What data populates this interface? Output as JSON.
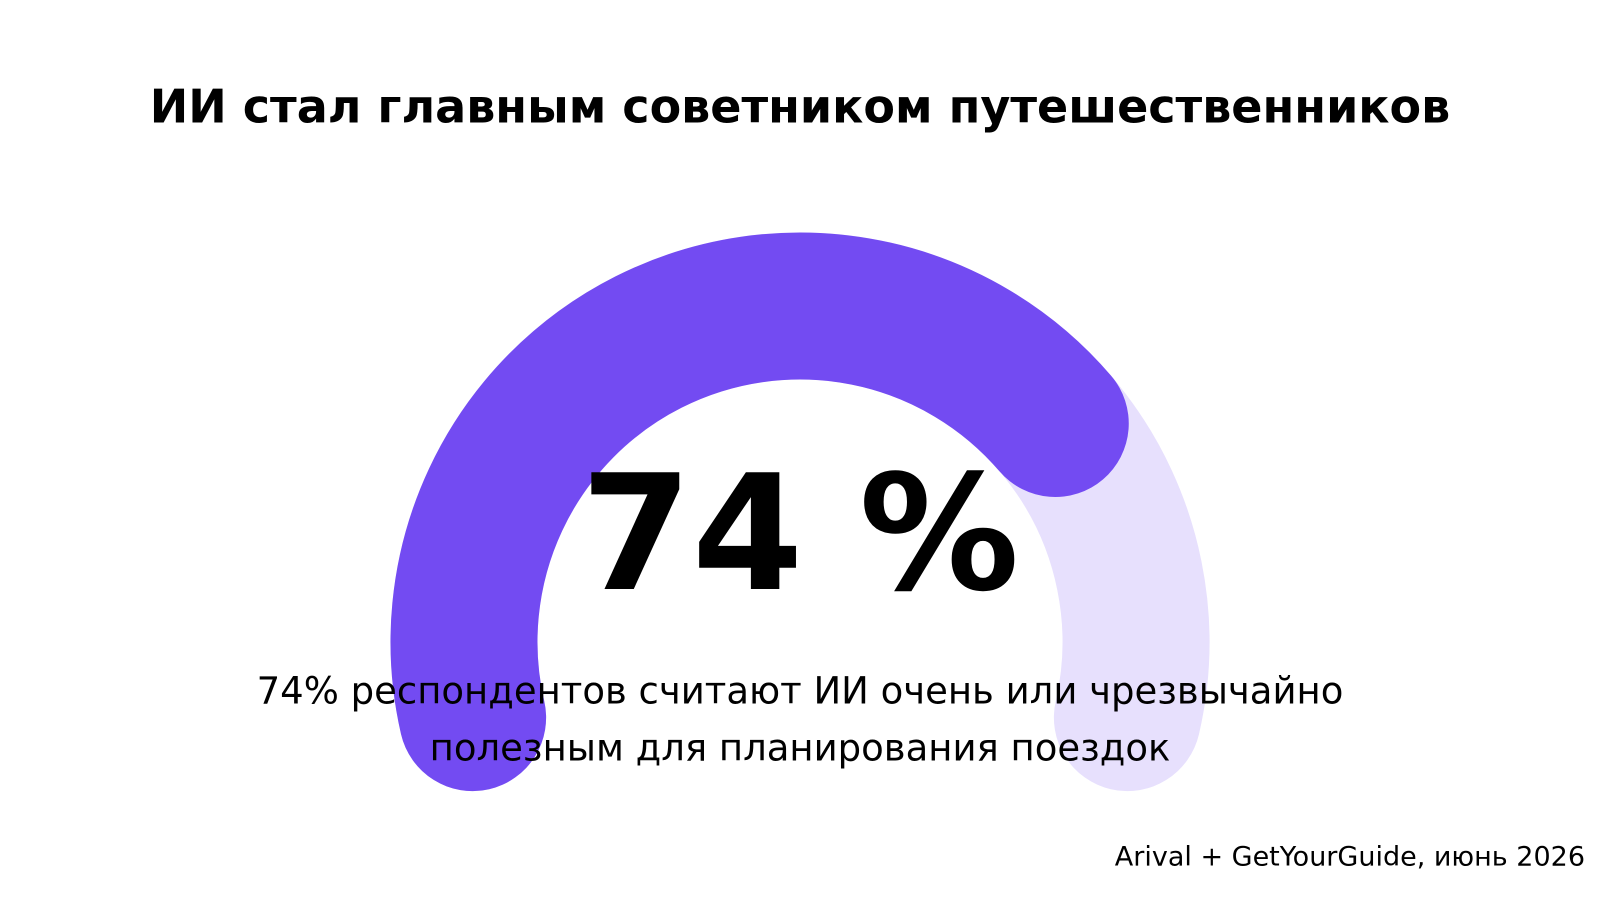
{
  "chart_data": {
    "type": "gauge",
    "title": "ИИ стал главным советником путешественников",
    "values": [
      74
    ],
    "value_labels": [
      "74 %"
    ],
    "range": [
      0,
      100
    ],
    "color": "#734bf2",
    "track_color": "#e7e0fd",
    "description": [
      "74% респондентов считают ИИ очень или чрезвычайно",
      "полезным для планирования поездок"
    ],
    "source": "Arival + GetYourGuide, июнь 2026"
  }
}
